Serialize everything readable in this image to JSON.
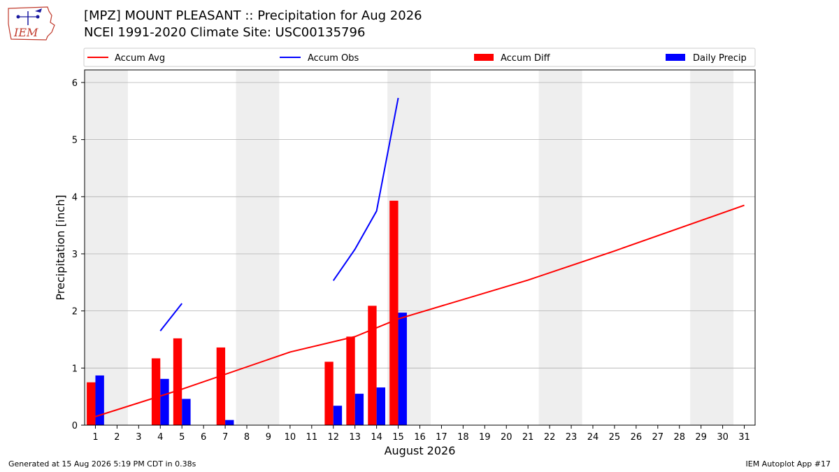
{
  "header": {
    "title_line1": "[MPZ] MOUNT PLEASANT :: Precipitation for Aug 2026",
    "title_line2": "NCEI 1991-2020 Climate Site: USC00135796"
  },
  "logo_text": "IEM",
  "footer": {
    "left": "Generated at 15 Aug 2026 5:19 PM CDT in 0.38s",
    "right": "IEM Autoplot App #17"
  },
  "colors": {
    "avg": "#ff0000",
    "obs": "#0000ff",
    "diff": "#ff0000",
    "daily": "#0000ff",
    "weekend": "#eeeeee"
  },
  "chart_data": {
    "type": "bar",
    "xlabel": "August 2026",
    "ylabel": "Precipitation [inch]",
    "ylim": [
      0,
      6.22
    ],
    "xlim": [
      0.5,
      31.5
    ],
    "yticks": [
      0,
      1,
      2,
      3,
      4,
      5,
      6
    ],
    "xticks": [
      1,
      2,
      3,
      4,
      5,
      6,
      7,
      8,
      9,
      10,
      11,
      12,
      13,
      14,
      15,
      16,
      17,
      18,
      19,
      20,
      21,
      22,
      23,
      24,
      25,
      26,
      27,
      28,
      29,
      30,
      31
    ],
    "grid": "horizontal",
    "legend_position": "top",
    "legend": [
      "Accum Avg",
      "Accum Obs",
      "Accum Diff",
      "Daily Precip"
    ],
    "weekend_days": [
      1,
      8,
      15,
      22,
      29
    ],
    "accum_avg": {
      "x": [
        1,
        5,
        10,
        13,
        15,
        21,
        25,
        31
      ],
      "y": [
        0.15,
        0.63,
        1.28,
        1.55,
        1.86,
        2.54,
        3.05,
        3.85
      ]
    },
    "accum_obs_segments": [
      {
        "x": [
          4,
          5
        ],
        "y": [
          1.65,
          2.13
        ]
      },
      {
        "x": [
          12,
          13,
          14,
          15
        ],
        "y": [
          2.53,
          3.08,
          3.75,
          5.73
        ]
      }
    ],
    "accum_diff": {
      "days": [
        1,
        4,
        5,
        7,
        12,
        13,
        14,
        15
      ],
      "values": [
        0.75,
        1.17,
        1.52,
        1.36,
        1.11,
        1.55,
        2.09,
        3.93
      ]
    },
    "daily_precip": {
      "days": [
        1,
        4,
        5,
        7,
        12,
        13,
        14,
        15
      ],
      "values": [
        0.87,
        0.81,
        0.46,
        0.09,
        0.34,
        0.55,
        0.66,
        1.97
      ]
    }
  }
}
